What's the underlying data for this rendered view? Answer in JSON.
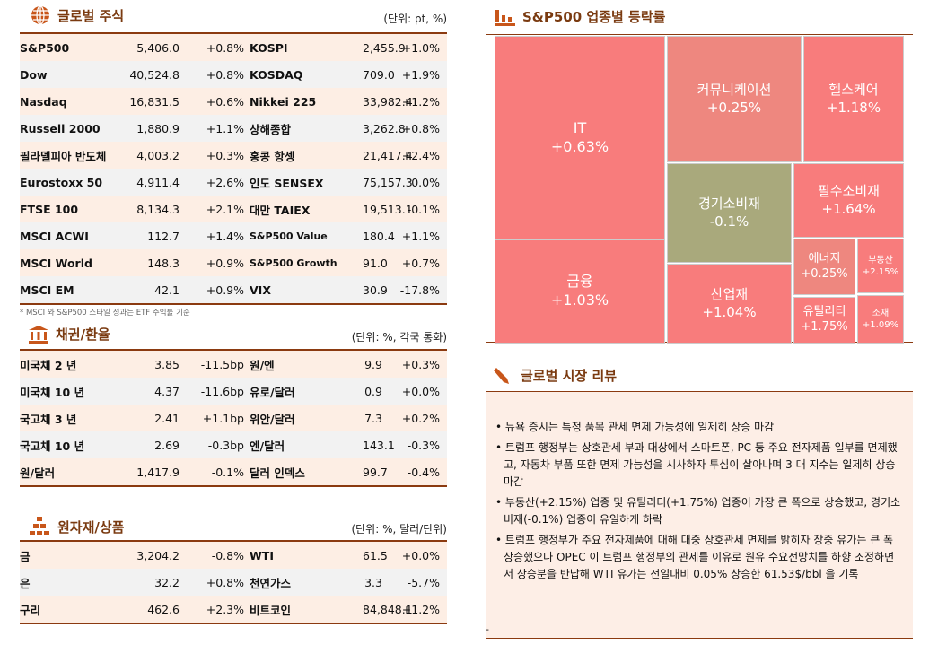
{
  "stocks": {
    "title": "글로벌 주식",
    "unit": "(단위: pt, %)",
    "icon": "globe-icon",
    "rows": [
      [
        "S&P500",
        "5,406.0",
        "+0.8%",
        "KOSPI",
        "2,455.9",
        "+1.0%"
      ],
      [
        "Dow",
        "40,524.8",
        "+0.8%",
        "KOSDAQ",
        "709.0",
        "+1.9%"
      ],
      [
        "Nasdaq",
        "16,831.5",
        "+0.6%",
        "Nikkei 225",
        "33,982.4",
        "+1.2%"
      ],
      [
        "Russell 2000",
        "1,880.9",
        "+1.1%",
        "상해종합",
        "3,262.8",
        "+0.8%"
      ],
      [
        "필라델피아 반도체",
        "4,003.2",
        "+0.3%",
        "홍콩 항셍",
        "21,417.4",
        "+2.4%"
      ],
      [
        "Eurostoxx 50",
        "4,911.4",
        "+2.6%",
        "인도 SENSEX",
        "75,157.3",
        "0.0%"
      ],
      [
        "FTSE 100",
        "8,134.3",
        "+2.1%",
        "대만 TAIEX",
        "19,513.1",
        "-0.1%"
      ],
      [
        "MSCI ACWI",
        "112.7",
        "+1.4%",
        "S&P500 Value",
        "180.4",
        "+1.1%"
      ],
      [
        "MSCI World",
        "148.3",
        "+0.9%",
        "S&P500 Growth",
        "91.0",
        "+0.7%"
      ],
      [
        "MSCI EM",
        "42.1",
        "+0.9%",
        "VIX",
        "30.9",
        "-17.8%"
      ]
    ],
    "note": "* MSCI 와 S&P500 스타일 성과는 ETF 수익률 기준"
  },
  "bonds": {
    "title": "채권/환율",
    "unit": "(단위: %, 각국 통화)",
    "icon": "bank-icon",
    "rows": [
      [
        "미국채 2 년",
        "3.85",
        "-11.5bp",
        "원/엔",
        "9.9",
        "+0.3%"
      ],
      [
        "미국채 10 년",
        "4.37",
        "-11.6bp",
        "유로/달러",
        "0.9",
        "+0.0%"
      ],
      [
        "국고채 3 년",
        "2.41",
        "+1.1bp",
        "위안/달러",
        "7.3",
        "+0.2%"
      ],
      [
        "국고채 10 년",
        "2.69",
        "-0.3bp",
        "엔/달러",
        "143.1",
        "-0.3%"
      ],
      [
        "원/달러",
        "1,417.9",
        "-0.1%",
        "달러 인덱스",
        "99.7",
        "-0.4%"
      ]
    ]
  },
  "commodities": {
    "title": "원자재/상품",
    "unit": "(단위: %, 달러/단위)",
    "icon": "gold-bars-icon",
    "rows": [
      [
        "금",
        "3,204.2",
        "-0.8%",
        "WTI",
        "61.5",
        "+0.0%"
      ],
      [
        "은",
        "32.2",
        "+0.8%",
        "천연가스",
        "3.3",
        "-5.7%"
      ],
      [
        "구리",
        "462.6",
        "+2.3%",
        "비트코인",
        "84,848.1",
        "+1.2%"
      ]
    ]
  },
  "treemap": {
    "title": "S&P500 업종별 등락률",
    "icon": "bar-chart-icon",
    "colors": {
      "up": "#f87c7c",
      "mild": "#ee877f",
      "down": "#a9a97c"
    },
    "tiles": [
      {
        "name": "IT",
        "value": "+0.63%"
      },
      {
        "name": "금융",
        "value": "+1.03%"
      },
      {
        "name": "커뮤니케이션",
        "value": "+0.25%"
      },
      {
        "name": "헬스케어",
        "value": "+1.18%"
      },
      {
        "name": "경기소비재",
        "value": "-0.1%"
      },
      {
        "name": "필수소비재",
        "value": "+1.64%"
      },
      {
        "name": "산업재",
        "value": "+1.04%"
      },
      {
        "name": "에너지",
        "value": "+0.25%"
      },
      {
        "name": "부동산",
        "value": "+2.15%"
      },
      {
        "name": "유틸리티",
        "value": "+1.75%"
      },
      {
        "name": "소재",
        "value": "+1.09%"
      }
    ]
  },
  "review": {
    "title": "글로벌 시장 리뷰",
    "icon": "pen-icon",
    "items": [
      "뉴욕 증시는 특정 품목 관세 면제 가능성에 일제히 상승 마감",
      "트럼프 행정부는 상호관세 부과 대상에서 스마트폰, PC 등 주요 전자제품 일부를 면제했고, 자동차 부품 또한 면제 가능성을 시사하자 투심이 살아나며 3 대 지수는 일제히 상승 마감",
      "부동산(+2.15%) 업종 및 유틸리티(+1.75%) 업종이 가장 큰 폭으로 상승했고, 경기소비재(-0.1%) 업종이 유일하게 하락",
      "트럼프 행정부가 주요 전자제품에 대해 대중 상호관세 면제를 밝히자 장중 유가는 큰 폭 상승했으나 OPEC 이 트럼프 행정부의 관세를 이유로 원유 수요전망치를 하향 조정하면서 상승분을 반납해 WTI 유가는 전일대비 0.05% 상승한 61.53$/bbl 을 기록"
    ],
    "footer": "-"
  }
}
